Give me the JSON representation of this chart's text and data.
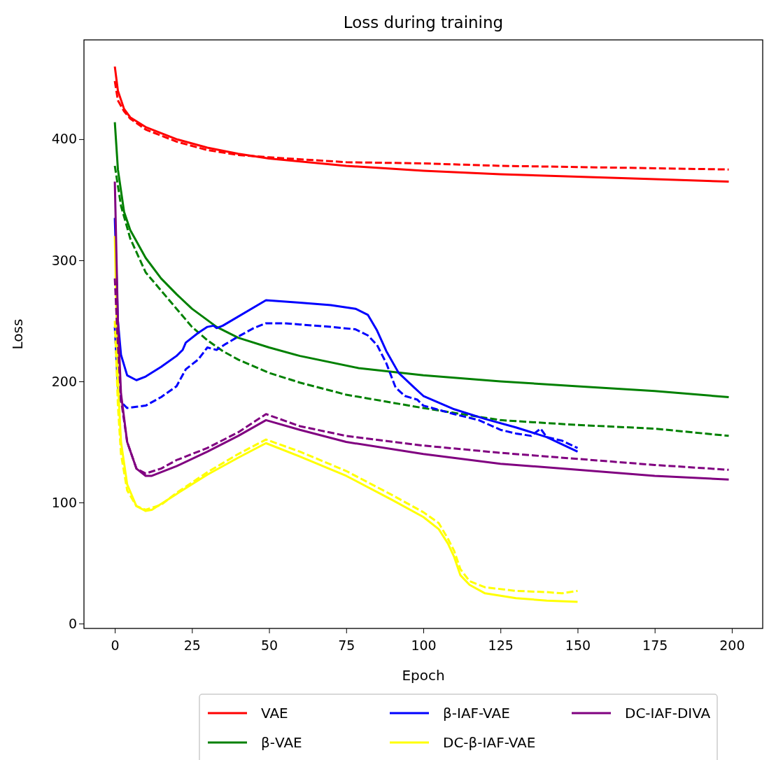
{
  "chart_data": {
    "type": "line",
    "title": "Loss during training",
    "xlabel": "Epoch",
    "ylabel": "Loss",
    "xlim": [
      -10,
      210
    ],
    "ylim": [
      -4,
      482
    ],
    "xticks": [
      0,
      25,
      50,
      75,
      100,
      125,
      150,
      175,
      200
    ],
    "yticks": [
      0,
      100,
      200,
      300,
      400
    ],
    "grid": false,
    "legend": "bottom",
    "marker": "none",
    "series": [
      {
        "name": "VAE",
        "color": "#ff0000",
        "line_style": "solid",
        "x": [
          0,
          1,
          3,
          5,
          10,
          20,
          30,
          40,
          50,
          75,
          100,
          125,
          150,
          175,
          199
        ],
        "values": [
          460,
          440,
          425,
          418,
          410,
          400,
          393,
          388,
          384,
          378,
          374,
          371,
          369,
          367,
          365
        ]
      },
      {
        "color": "#ff0000",
        "line_style": "dashed",
        "x": [
          0,
          1,
          3,
          5,
          10,
          20,
          30,
          40,
          50,
          75,
          100,
          125,
          150,
          175,
          199
        ],
        "values": [
          448,
          432,
          423,
          417,
          408,
          398,
          391,
          387,
          385,
          381,
          380,
          378,
          377,
          376,
          375
        ]
      },
      {
        "name": "β-VAE",
        "color": "#008000",
        "line_style": "solid",
        "x": [
          0,
          1,
          3,
          5,
          10,
          15,
          20,
          25,
          33,
          40,
          50,
          60,
          79,
          100,
          125,
          150,
          175,
          199
        ],
        "values": [
          414,
          375,
          340,
          325,
          302,
          285,
          272,
          260,
          245,
          236,
          228,
          221,
          211,
          205,
          200,
          196,
          192,
          187
        ]
      },
      {
        "color": "#008000",
        "line_style": "dashed",
        "x": [
          0,
          2,
          5,
          10,
          15,
          20,
          25,
          30,
          35,
          40,
          50,
          60,
          75,
          100,
          125,
          150,
          175,
          199
        ],
        "values": [
          378,
          345,
          318,
          290,
          275,
          260,
          245,
          234,
          225,
          218,
          207,
          199,
          189,
          178,
          168,
          164,
          161,
          155
        ]
      },
      {
        "name": "β-IAF-VAE",
        "color": "#0000ff",
        "line_style": "solid",
        "x": [
          0,
          1,
          2,
          4,
          7,
          10,
          15,
          20,
          22,
          23,
          27,
          30,
          32,
          33,
          35,
          49,
          60,
          70,
          78,
          82,
          85,
          88,
          92,
          97,
          100,
          110,
          120,
          130,
          140,
          150
        ],
        "values": [
          335,
          250,
          222,
          205,
          201,
          204,
          212,
          221,
          226,
          232,
          240,
          245,
          246,
          244,
          246,
          267,
          265,
          263,
          260,
          255,
          242,
          225,
          207,
          195,
          188,
          177,
          169,
          162,
          154,
          142
        ]
      },
      {
        "color": "#0000ff",
        "line_style": "dashed",
        "x": [
          0,
          1,
          2,
          4,
          7,
          10,
          15,
          20,
          23,
          27,
          30,
          33,
          36,
          40,
          45,
          49,
          55,
          60,
          70,
          78,
          82,
          85,
          88,
          91,
          94,
          98,
          100,
          110,
          118,
          125,
          130,
          135,
          138,
          140,
          145,
          150
        ],
        "values": [
          245,
          195,
          183,
          178,
          179,
          180,
          187,
          196,
          210,
          218,
          228,
          226,
          231,
          237,
          244,
          248,
          248,
          247,
          245,
          243,
          238,
          230,
          215,
          195,
          188,
          185,
          180,
          173,
          168,
          160,
          157,
          155,
          161,
          154,
          151,
          145
        ]
      },
      {
        "name": "DC-β-IAF-VAE",
        "color": "#ffff00",
        "line_style": "solid",
        "x": [
          0,
          1,
          2,
          4,
          7,
          10,
          12,
          20,
          30,
          40,
          49,
          60,
          75,
          90,
          100,
          105,
          108,
          110,
          112,
          115,
          120,
          130,
          140,
          150
        ],
        "values": [
          320,
          200,
          150,
          115,
          97,
          93,
          94,
          107,
          123,
          137,
          149,
          138,
          122,
          102,
          88,
          78,
          66,
          55,
          40,
          32,
          25,
          21,
          19,
          18
        ]
      },
      {
        "color": "#ffff00",
        "line_style": "dashed",
        "x": [
          0,
          1,
          2,
          4,
          7,
          10,
          15,
          20,
          30,
          40,
          49,
          60,
          75,
          90,
          100,
          105,
          108,
          110,
          112,
          115,
          120,
          130,
          140,
          145,
          150
        ],
        "values": [
          250,
          180,
          140,
          110,
          97,
          94,
          98,
          108,
          125,
          140,
          152,
          142,
          126,
          106,
          92,
          83,
          70,
          60,
          45,
          35,
          30,
          27,
          26,
          25,
          27
        ]
      },
      {
        "name": "DC-IAF-DIVA",
        "color": "#800080",
        "line_style": "solid",
        "x": [
          0,
          1,
          2,
          4,
          7,
          10,
          12,
          20,
          30,
          40,
          49,
          60,
          75,
          100,
          125,
          150,
          175,
          199
        ],
        "values": [
          365,
          250,
          190,
          150,
          128,
          122,
          122,
          130,
          142,
          155,
          168,
          160,
          150,
          140,
          132,
          127,
          122,
          119
        ]
      },
      {
        "color": "#800080",
        "line_style": "dashed",
        "x": [
          0,
          1,
          2,
          4,
          7,
          10,
          15,
          20,
          30,
          40,
          49,
          60,
          75,
          100,
          125,
          150,
          175,
          199
        ],
        "values": [
          285,
          230,
          185,
          150,
          128,
          124,
          128,
          135,
          145,
          158,
          173,
          163,
          155,
          147,
          141,
          136,
          131,
          127
        ]
      }
    ]
  }
}
